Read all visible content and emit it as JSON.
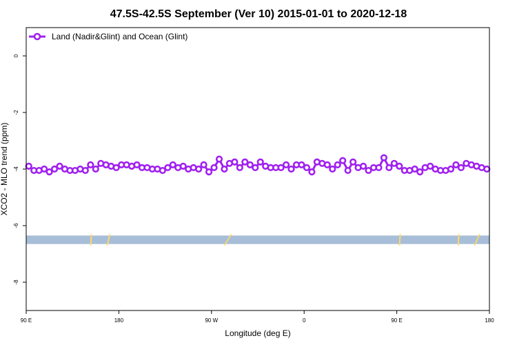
{
  "chart_data": {
    "type": "line",
    "title": "47.5S-42.5S September (Ver 10)   2015-01-01 to 2020-12-18",
    "xlabel": "Longitude (deg E)",
    "ylabel": "XCO2 - MLO trend (ppm)",
    "xlim": [
      90,
      540
    ],
    "ylim": [
      -9,
      1
    ],
    "x_ticks": [
      {
        "value": 90,
        "label": "90 E"
      },
      {
        "value": 180,
        "label": "180"
      },
      {
        "value": 270,
        "label": "90 W"
      },
      {
        "value": 360,
        "label": "0"
      },
      {
        "value": 450,
        "label": "90 E"
      },
      {
        "value": 540,
        "label": "180"
      }
    ],
    "y_ticks": [
      {
        "value": 0,
        "label": "0"
      },
      {
        "value": -2,
        "label": "-2"
      },
      {
        "value": -4,
        "label": "-4"
      },
      {
        "value": -6,
        "label": "-6"
      },
      {
        "value": -8,
        "label": "-8"
      }
    ],
    "grid": false,
    "legend_position": "top-left",
    "series": [
      {
        "name": "Land (Nadir&Glint) and Ocean (Glint)",
        "color": "#a020f0",
        "marker": "open-circle",
        "x": [
          92.5,
          97.5,
          102.5,
          107.5,
          112.5,
          117.5,
          122.5,
          127.5,
          132.5,
          137.5,
          142.5,
          147.5,
          152.5,
          157.5,
          162.5,
          167.5,
          172.5,
          177.5,
          182.5,
          187.5,
          192.5,
          197.5,
          202.5,
          207.5,
          212.5,
          217.5,
          222.5,
          227.5,
          232.5,
          237.5,
          242.5,
          247.5,
          252.5,
          257.5,
          262.5,
          267.5,
          272.5,
          277.5,
          282.5,
          287.5,
          292.5,
          297.5,
          302.5,
          307.5,
          312.5,
          317.5,
          322.5,
          327.5,
          332.5,
          337.5,
          342.5,
          347.5,
          352.5,
          357.5,
          362.5,
          367.5,
          372.5,
          377.5,
          382.5,
          387.5,
          392.5,
          397.5,
          402.5,
          407.5,
          412.5,
          417.5,
          422.5,
          427.5,
          432.5,
          437.5,
          442.5,
          447.5,
          452.5,
          457.5,
          462.5,
          467.5,
          472.5,
          477.5,
          482.5,
          487.5,
          492.5,
          497.5,
          502.5,
          507.5,
          512.5,
          517.5,
          522.5,
          527.5,
          532.5,
          537.5
        ],
        "values": [
          -3.9,
          -4.05,
          -4.05,
          -4.0,
          -4.1,
          -4.0,
          -3.9,
          -4.0,
          -4.05,
          -4.05,
          -4.0,
          -4.05,
          -3.85,
          -4.0,
          -3.8,
          -3.85,
          -3.9,
          -3.95,
          -3.85,
          -3.85,
          -3.9,
          -3.85,
          -3.95,
          -3.95,
          -4.0,
          -4.0,
          -4.05,
          -3.95,
          -3.85,
          -3.95,
          -3.9,
          -4.0,
          -3.95,
          -4.0,
          -3.85,
          -4.1,
          -3.95,
          -3.65,
          -4.0,
          -3.8,
          -3.75,
          -3.95,
          -3.75,
          -3.85,
          -3.95,
          -3.75,
          -3.9,
          -3.95,
          -3.95,
          -3.95,
          -3.85,
          -4.0,
          -3.85,
          -3.85,
          -3.95,
          -4.1,
          -3.75,
          -3.8,
          -3.85,
          -4.0,
          -3.85,
          -3.7,
          -4.05,
          -3.75,
          -3.95,
          -3.9,
          -4.05,
          -3.95,
          -3.95,
          -3.6,
          -3.95,
          -3.8,
          -3.9,
          -4.05,
          -4.05,
          -4.0,
          -4.1,
          -3.95,
          -3.9,
          -4.0,
          -4.05,
          -4.05,
          -4.0,
          -3.85,
          -3.95,
          -3.8,
          -3.85,
          -3.9,
          -3.95,
          -4.0
        ]
      }
    ],
    "map_strip": {
      "y_range": [
        -6.65,
        -6.35
      ],
      "water_color": "#a8bdd8",
      "land_color": "#ffd966",
      "land_spans": [
        [
          152,
          154
        ],
        [
          168,
          172
        ],
        [
          282,
          290
        ],
        [
          452,
          454
        ],
        [
          509,
          511
        ],
        [
          525,
          531
        ]
      ]
    }
  }
}
